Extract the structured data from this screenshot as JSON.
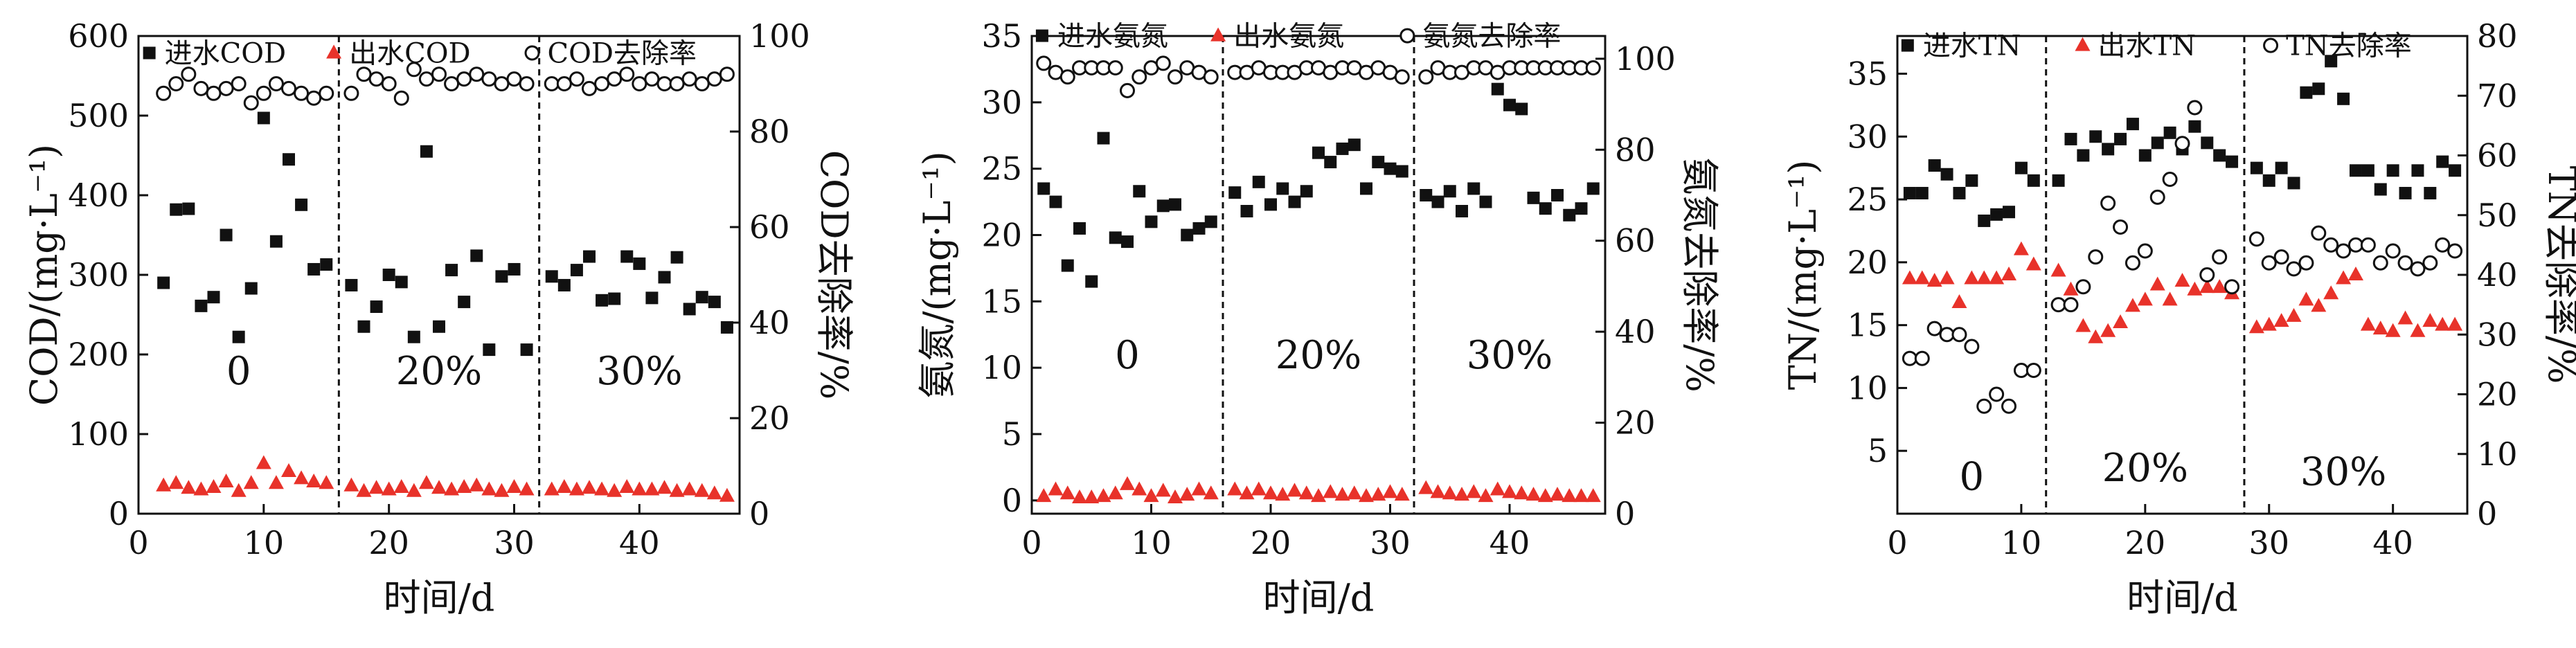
{
  "colors": {
    "influent": "#111111",
    "effluent": "#e8322a",
    "removal": "#111111"
  },
  "chart_data": [
    {
      "type": "scatter",
      "xlabel": "时间/d",
      "ylabel": "COD/(mg·L⁻¹)",
      "y2label": "COD去除率/%",
      "xlim": [
        0,
        48
      ],
      "ylim": [
        0,
        600
      ],
      "y2lim": [
        0,
        100
      ],
      "xticks": [
        "0",
        "10",
        "20",
        "30",
        "40"
      ],
      "yticks": [
        "0",
        "100",
        "200",
        "300",
        "400",
        "500",
        "600"
      ],
      "y2ticks": [
        "0",
        "20",
        "40",
        "60",
        "80",
        "100"
      ],
      "phase_boundaries": [
        16,
        32
      ],
      "phase_labels": [
        {
          "text": "0",
          "x": 8,
          "y": 180
        },
        {
          "text": "20%",
          "x": 24,
          "y": 180
        },
        {
          "text": "30%",
          "x": 40,
          "y": 180
        }
      ],
      "legend": [
        "进水COD",
        "出水COD",
        "COD去除率"
      ],
      "series": [
        {
          "name": "进水COD",
          "marker": "square",
          "axis": "left",
          "x": [
            2,
            3,
            4,
            5,
            6,
            7,
            8,
            9,
            10,
            11,
            12,
            13,
            14,
            15,
            17,
            18,
            19,
            20,
            21,
            22,
            23,
            24,
            25,
            26,
            27,
            28,
            29,
            30,
            31,
            33,
            34,
            35,
            36,
            37,
            38,
            39,
            40,
            41,
            42,
            43,
            44,
            45,
            46,
            47
          ],
          "y": [
            290,
            382,
            383,
            261,
            272,
            350,
            222,
            283,
            497,
            342,
            445,
            388,
            307,
            313,
            287,
            235,
            260,
            300,
            291,
            222,
            455,
            235,
            306,
            266,
            324,
            206,
            298,
            307,
            206,
            298,
            287,
            306,
            323,
            268,
            270,
            323,
            314,
            271,
            297,
            322,
            257,
            272,
            266,
            234
          ]
        },
        {
          "name": "出水COD",
          "marker": "triangle",
          "axis": "left",
          "x": [
            2,
            3,
            4,
            5,
            6,
            7,
            8,
            9,
            10,
            11,
            12,
            13,
            14,
            15,
            17,
            18,
            19,
            20,
            21,
            22,
            23,
            24,
            25,
            26,
            27,
            28,
            29,
            30,
            31,
            33,
            34,
            35,
            36,
            37,
            38,
            39,
            40,
            41,
            42,
            43,
            44,
            45,
            46,
            47
          ],
          "y": [
            35,
            38,
            32,
            30,
            33,
            40,
            28,
            38,
            63,
            38,
            53,
            44,
            40,
            38,
            35,
            28,
            32,
            30,
            33,
            28,
            38,
            32,
            30,
            33,
            35,
            30,
            28,
            33,
            30,
            30,
            33,
            30,
            32,
            30,
            28,
            33,
            30,
            30,
            32,
            28,
            30,
            28,
            25,
            22
          ]
        },
        {
          "name": "COD去除率",
          "marker": "circle",
          "axis": "right",
          "x": [
            2,
            3,
            4,
            5,
            6,
            7,
            8,
            9,
            10,
            11,
            12,
            13,
            14,
            15,
            17,
            18,
            19,
            20,
            21,
            22,
            23,
            24,
            25,
            26,
            27,
            28,
            29,
            30,
            31,
            33,
            34,
            35,
            36,
            37,
            38,
            39,
            40,
            41,
            42,
            43,
            44,
            45,
            46,
            47
          ],
          "y": [
            88,
            90,
            92,
            89,
            88,
            89,
            90,
            86,
            88,
            90,
            89,
            88,
            87,
            88,
            88,
            92,
            91,
            90,
            87,
            93,
            91,
            92,
            90,
            91,
            92,
            91,
            90,
            91,
            90,
            90,
            90,
            91,
            89,
            90,
            91,
            92,
            90,
            91,
            90,
            90,
            91,
            90,
            91,
            92
          ]
        }
      ]
    },
    {
      "type": "scatter",
      "xlabel": "时间/d",
      "ylabel": "氨氮/(mg·L⁻¹)",
      "y2label": "氨氮去除率/%",
      "xlim": [
        0,
        48
      ],
      "ylim": [
        -1,
        35
      ],
      "y2lim": [
        0,
        105
      ],
      "xticks": [
        "0",
        "10",
        "20",
        "30",
        "40"
      ],
      "yticks": [
        "0",
        "5",
        "10",
        "15",
        "20",
        "25",
        "30",
        "35"
      ],
      "y2ticks": [
        "0",
        "20",
        "40",
        "60",
        "80",
        "100"
      ],
      "phase_boundaries": [
        16,
        32
      ],
      "phase_labels": [
        {
          "text": "0",
          "x": 8,
          "y": 11
        },
        {
          "text": "20%",
          "x": 24,
          "y": 11
        },
        {
          "text": "30%",
          "x": 40,
          "y": 11
        }
      ],
      "legend": [
        "进水氨氮",
        "出水氨氮",
        "氨氮去除率"
      ],
      "series": [
        {
          "name": "进水氨氮",
          "marker": "square",
          "axis": "left",
          "x": [
            1,
            2,
            3,
            4,
            5,
            6,
            7,
            8,
            9,
            10,
            11,
            12,
            13,
            14,
            15,
            17,
            18,
            19,
            20,
            21,
            22,
            23,
            24,
            25,
            26,
            27,
            28,
            29,
            30,
            31,
            33,
            34,
            35,
            36,
            37,
            38,
            39,
            40,
            41,
            42,
            43,
            44,
            45,
            46,
            47
          ],
          "y": [
            23.5,
            22.5,
            17.7,
            20.5,
            16.5,
            27.3,
            19.8,
            19.5,
            23.3,
            21,
            22.2,
            22.3,
            20,
            20.5,
            21,
            23.2,
            21.8,
            24,
            22.3,
            23.5,
            22.5,
            23.3,
            26.2,
            25.5,
            26.5,
            26.8,
            23.5,
            25.5,
            25,
            24.8,
            23,
            22.5,
            23.3,
            21.8,
            23.5,
            22.5,
            31,
            29.8,
            29.5,
            22.8,
            22,
            23,
            21.5,
            22,
            23.5
          ]
        },
        {
          "name": "出水氨氮",
          "marker": "triangle",
          "axis": "left",
          "x": [
            1,
            2,
            3,
            4,
            5,
            6,
            7,
            8,
            9,
            10,
            11,
            12,
            13,
            14,
            15,
            17,
            18,
            19,
            20,
            21,
            22,
            23,
            24,
            25,
            26,
            27,
            28,
            29,
            30,
            31,
            33,
            34,
            35,
            36,
            37,
            38,
            39,
            40,
            41,
            42,
            43,
            44,
            45,
            46,
            47
          ],
          "y": [
            0.3,
            0.8,
            0.5,
            0.2,
            0.2,
            0.3,
            0.5,
            1.2,
            0.8,
            0.3,
            0.7,
            0.2,
            0.4,
            0.8,
            0.5,
            0.8,
            0.5,
            0.8,
            0.5,
            0.4,
            0.7,
            0.5,
            0.3,
            0.6,
            0.4,
            0.5,
            0.3,
            0.4,
            0.6,
            0.4,
            0.9,
            0.6,
            0.5,
            0.4,
            0.6,
            0.3,
            0.8,
            0.6,
            0.5,
            0.4,
            0.3,
            0.4,
            0.3,
            0.3,
            0.3
          ]
        },
        {
          "name": "氨氮去除率",
          "marker": "circle",
          "axis": "right",
          "x": [
            1,
            2,
            3,
            4,
            5,
            6,
            7,
            8,
            9,
            10,
            11,
            12,
            13,
            14,
            15,
            17,
            18,
            19,
            20,
            21,
            22,
            23,
            24,
            25,
            26,
            27,
            28,
            29,
            30,
            31,
            33,
            34,
            35,
            36,
            37,
            38,
            39,
            40,
            41,
            42,
            43,
            44,
            45,
            46,
            47
          ],
          "y": [
            99,
            97,
            96,
            98,
            98,
            98,
            98,
            93,
            96,
            98,
            99,
            96,
            98,
            97,
            96,
            97,
            97,
            98,
            97,
            97,
            97,
            98,
            98,
            97,
            98,
            98,
            97,
            98,
            97,
            96,
            96,
            98,
            97,
            97,
            98,
            98,
            97,
            98,
            98,
            98,
            98,
            98,
            98,
            98,
            98
          ]
        }
      ]
    },
    {
      "type": "scatter",
      "xlabel": "时间/d",
      "ylabel": "TN/(mg·L⁻¹)",
      "y2label": "TN去除率/%",
      "xlim": [
        0,
        46
      ],
      "ylim": [
        0,
        38
      ],
      "y2lim": [
        0,
        80
      ],
      "xticks": [
        "0",
        "10",
        "20",
        "30",
        "40"
      ],
      "yticks": [
        "5",
        "10",
        "15",
        "20",
        "25",
        "30",
        "35"
      ],
      "y2ticks": [
        "0",
        "10",
        "20",
        "30",
        "40",
        "50",
        "60",
        "70",
        "80"
      ],
      "phase_boundaries": [
        12,
        28
      ],
      "phase_labels": [
        {
          "text": "0",
          "x": 6,
          "y": 3
        },
        {
          "text": "20%",
          "x": 20,
          "y": 3.7
        },
        {
          "text": "30%",
          "x": 36,
          "y": 3.4
        }
      ],
      "legend": [
        "进水TN",
        "出水TN",
        "TN去除率"
      ],
      "series": [
        {
          "name": "进水TN",
          "marker": "square",
          "axis": "left",
          "x": [
            1,
            2,
            3,
            4,
            5,
            6,
            7,
            8,
            9,
            10,
            11,
            13,
            14,
            15,
            16,
            17,
            18,
            19,
            20,
            21,
            22,
            23,
            24,
            25,
            26,
            27,
            29,
            30,
            31,
            32,
            33,
            34,
            35,
            36,
            37,
            38,
            39,
            40,
            41,
            42,
            43,
            44,
            45
          ],
          "y": [
            25.5,
            25.5,
            27.7,
            27,
            25.5,
            26.5,
            23.3,
            23.8,
            24,
            27.5,
            26.5,
            26.5,
            29.8,
            28.5,
            30,
            29,
            29.8,
            31,
            28.5,
            29.5,
            30.3,
            29,
            30.8,
            29.5,
            28.5,
            28,
            27.5,
            26.5,
            27.5,
            26.3,
            33.5,
            33.8,
            36,
            33,
            27.3,
            27.3,
            25.8,
            27.3,
            25.5,
            27.3,
            25.5,
            28,
            27.3
          ]
        },
        {
          "name": "出水TN",
          "marker": "triangle",
          "axis": "left",
          "x": [
            1,
            2,
            3,
            4,
            5,
            6,
            7,
            8,
            9,
            10,
            11,
            13,
            14,
            15,
            16,
            17,
            18,
            19,
            20,
            21,
            22,
            23,
            24,
            25,
            26,
            27,
            29,
            30,
            31,
            32,
            33,
            34,
            35,
            36,
            37,
            38,
            39,
            40,
            41,
            42,
            43,
            44,
            45
          ],
          "y": [
            18.7,
            18.7,
            18.5,
            18.7,
            16.8,
            18.7,
            18.7,
            18.7,
            19,
            21,
            19.8,
            19.3,
            17.8,
            14.9,
            14,
            14.5,
            15.2,
            16.5,
            17,
            18.2,
            17,
            18.5,
            17.8,
            18,
            18,
            17.5,
            14.8,
            15,
            15.3,
            15.7,
            17,
            16.5,
            17.5,
            18.7,
            19,
            15,
            14.7,
            14.5,
            15.5,
            14.5,
            15.3,
            15,
            15
          ]
        },
        {
          "name": "TN去除率",
          "marker": "circle",
          "axis": "right",
          "x": [
            1,
            2,
            3,
            4,
            5,
            6,
            7,
            8,
            9,
            10,
            11,
            13,
            14,
            15,
            16,
            17,
            18,
            19,
            20,
            21,
            22,
            23,
            24,
            25,
            26,
            27,
            29,
            30,
            31,
            32,
            33,
            34,
            35,
            36,
            37,
            38,
            39,
            40,
            41,
            42,
            43,
            44,
            45
          ],
          "y": [
            26,
            26,
            31,
            30,
            30,
            28,
            18,
            20,
            18,
            24,
            24,
            35,
            35,
            38,
            43,
            52,
            48,
            42,
            44,
            53,
            56,
            62,
            68,
            40,
            43,
            38,
            46,
            42,
            43,
            41,
            42,
            47,
            45,
            44,
            45,
            45,
            42,
            44,
            42,
            41,
            42,
            45,
            44
          ]
        }
      ]
    }
  ]
}
